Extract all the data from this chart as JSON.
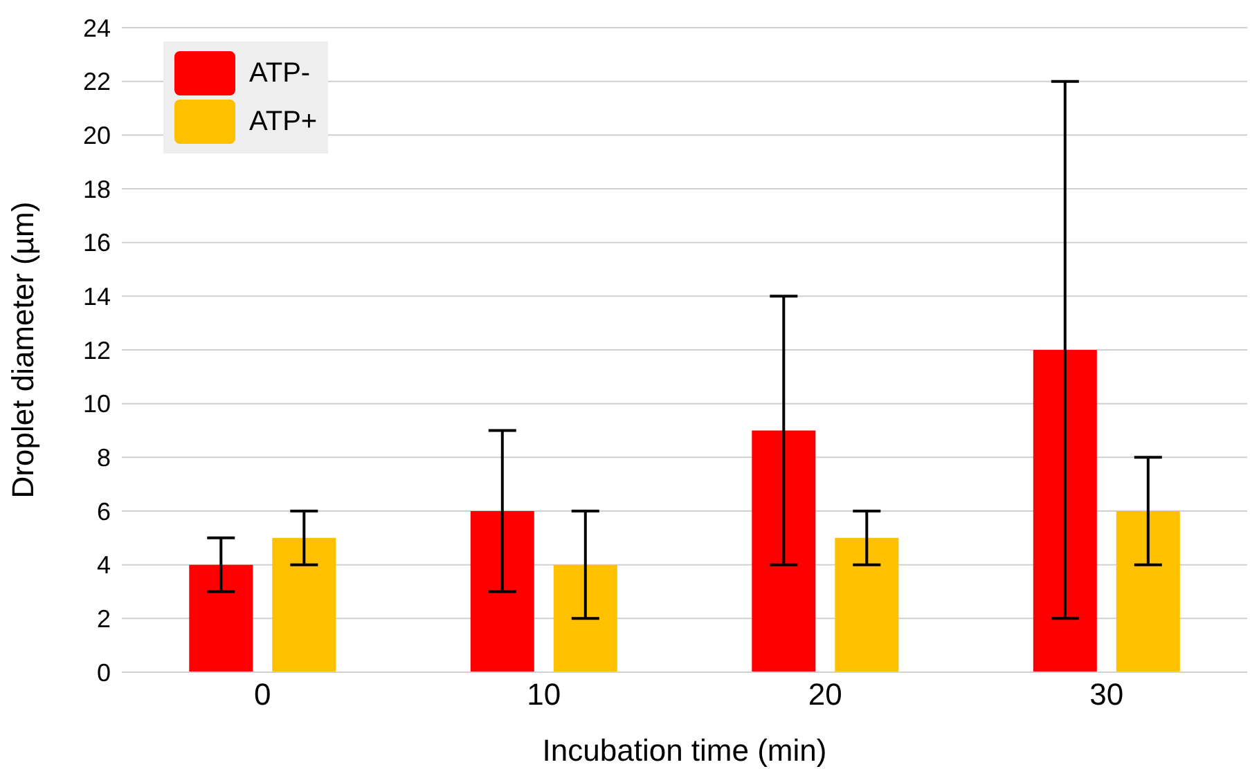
{
  "chart_data": {
    "type": "bar",
    "xlabel": "Incubation time (min)",
    "ylabel": "Droplet diameter (µm)",
    "categories": [
      "0",
      "10",
      "20",
      "30"
    ],
    "series": [
      {
        "name": "ATP-",
        "color": "#ff0000",
        "values": [
          4,
          6,
          9,
          12
        ],
        "errors": [
          1,
          3,
          5,
          10
        ]
      },
      {
        "name": "ATP+",
        "color": "#ffc000",
        "values": [
          5,
          4,
          5,
          6
        ],
        "errors": [
          1,
          2,
          1,
          2
        ]
      }
    ],
    "ylim": [
      0,
      24
    ],
    "yticks": [
      0,
      2,
      4,
      6,
      8,
      10,
      12,
      14,
      16,
      18,
      20,
      22,
      24
    ],
    "grid": "y",
    "legend": "top left"
  }
}
